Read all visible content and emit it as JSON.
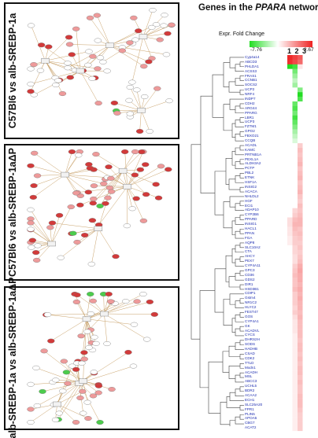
{
  "panels": [
    {
      "label": "C57Bl6 vs alb-SREBP-1a"
    },
    {
      "label": "C57Bl6 vs alb-SREBP-1aΔP"
    },
    {
      "label": "alb-SREBP-1a vs alb-SREBP-1aΔP"
    }
  ],
  "heatmap": {
    "title_prefix": "Genes in the ",
    "title_gene": "PPARA",
    "title_suffix": " network",
    "legend_label": "Expr. Fold Change",
    "min_label": "-7.76",
    "max_label": "2.67",
    "column_labels": "1 2 3",
    "colors": {
      "low": "#22dd22",
      "mid": "#ffffff",
      "high": "#ee2222"
    },
    "genes": [
      "Cyp4a14",
      "ABCD3",
      "PHLDA1",
      "ACSS3",
      "FRAS1",
      "CCNB1",
      "SOCS2",
      "UCP2",
      "NRF4",
      "INDP7",
      "CDH2",
      "ARG44",
      "PPARG",
      "LBR1",
      "UCP3",
      "FZTM1",
      "GPO2",
      "FBXO21",
      "CCQB",
      "ACADL",
      "KAMC",
      "PRTNB1A",
      "PEXL1A",
      "ALDH3A2",
      "PCTP",
      "PBL2",
      "ETNK",
      "HSF1A",
      "INSIG2",
      "ACACA",
      "NHLDL2",
      "HGF",
      "ECI1",
      "ADAP10",
      "CYP2B6",
      "PPARD",
      "INSIG1",
      "HACL1",
      "PPAN",
      "FGA",
      "AQP8",
      "SLC10A2",
      "CTA",
      "AHCY",
      "PEX7",
      "CYP4A11",
      "GPC3",
      "CD36",
      "GDS2",
      "DIR1",
      "HSD3B1",
      "CDIP1",
      "Gstm4",
      "NR1C2",
      "HLYC2",
      "FEST47",
      "GOS",
      "CYP4A1",
      "GK",
      "ACADVL",
      "CYCS",
      "DHRS2H",
      "SODS",
      "HADHB",
      "CSAD",
      "CDK2",
      "TTLD",
      "Mxdn1",
      "ACADH",
      "MSL",
      "ABCC3",
      "UCHL5",
      "BDR2",
      "ACAA2",
      "ECH1",
      "SLC25A20",
      "FPR1",
      "PLIN5",
      "APOA5",
      "CBG7",
      "ACAT2"
    ],
    "values": [
      [
        2.6,
        2.3,
        2.0
      ],
      [
        2.5,
        2.2,
        1.8
      ],
      [
        -6.5,
        -3.0,
        0.3
      ],
      [
        0.0,
        -2.2,
        0.0
      ],
      [
        0.0,
        -1.6,
        0.0
      ],
      [
        0.0,
        -1.0,
        0.0
      ],
      [
        0.0,
        -1.5,
        0.0
      ],
      [
        0.0,
        0.0,
        -2.0
      ],
      [
        0.0,
        0.0,
        -3.5
      ],
      [
        0.0,
        0.0,
        -2.8
      ],
      [
        0.0,
        -2.4,
        0.0
      ],
      [
        0.0,
        -2.8,
        0.0
      ],
      [
        0.0,
        -2.2,
        0.0
      ],
      [
        0.0,
        -3.0,
        0.0
      ],
      [
        0.0,
        -2.5,
        0.0
      ],
      [
        0.0,
        -2.0,
        0.0
      ],
      [
        0.0,
        -1.4,
        0.0
      ],
      [
        0.0,
        -1.0,
        0.0
      ],
      [
        0.0,
        -0.6,
        0.0
      ],
      [
        0.0,
        0.0,
        0.6
      ],
      [
        0.0,
        0.0,
        0.8
      ],
      [
        0.0,
        0.0,
        0.7
      ],
      [
        0.0,
        0.0,
        0.8
      ],
      [
        0.0,
        0.0,
        0.9
      ],
      [
        0.0,
        0.0,
        0.7
      ],
      [
        0.0,
        0.0,
        0.8
      ],
      [
        0.0,
        0.0,
        0.9
      ],
      [
        0.0,
        0.0,
        0.7
      ],
      [
        0.0,
        0.0,
        0.8
      ],
      [
        0.0,
        0.0,
        0.9
      ],
      [
        0.0,
        0.0,
        0.7
      ],
      [
        0.0,
        0.0,
        0.6
      ],
      [
        0.0,
        0.0,
        0.8
      ],
      [
        0.0,
        0.5,
        0.7
      ],
      [
        0.0,
        0.6,
        0.8
      ],
      [
        0.4,
        0.8,
        0.9
      ],
      [
        0.4,
        0.9,
        0.9
      ],
      [
        0.3,
        0.8,
        0.7
      ],
      [
        0.3,
        0.7,
        0.8
      ],
      [
        0.2,
        0.6,
        0.7
      ],
      [
        0.2,
        0.6,
        0.6
      ],
      [
        0.0,
        0.5,
        0.7
      ],
      [
        0.0,
        0.5,
        0.6
      ],
      [
        0.0,
        0.4,
        0.7
      ],
      [
        0.0,
        0.4,
        0.8
      ],
      [
        0.0,
        0.6,
        1.0
      ],
      [
        0.0,
        0.7,
        1.1
      ],
      [
        0.0,
        0.8,
        1.0
      ],
      [
        0.0,
        0.7,
        1.0
      ],
      [
        0.0,
        0.7,
        0.9
      ],
      [
        0.0,
        0.8,
        1.0
      ],
      [
        0.0,
        0.6,
        0.9
      ],
      [
        0.0,
        0.6,
        1.0
      ],
      [
        0.0,
        0.6,
        0.9
      ],
      [
        0.0,
        0.5,
        0.9
      ],
      [
        0.0,
        0.6,
        0.8
      ],
      [
        0.0,
        0.4,
        0.9
      ],
      [
        0.0,
        0.3,
        0.8
      ],
      [
        0.0,
        0.3,
        0.8
      ],
      [
        0.0,
        0.3,
        0.8
      ],
      [
        0.0,
        0.2,
        0.8
      ],
      [
        0.0,
        0.2,
        0.7
      ],
      [
        0.0,
        0.2,
        0.8
      ],
      [
        0.0,
        0.2,
        0.8
      ],
      [
        0.0,
        0.2,
        0.7
      ],
      [
        0.0,
        0.2,
        0.8
      ],
      [
        0.0,
        0.2,
        0.7
      ],
      [
        0.0,
        0.2,
        0.8
      ],
      [
        0.0,
        0.2,
        0.8
      ],
      [
        0.0,
        0.2,
        0.7
      ],
      [
        0.0,
        0.2,
        0.8
      ],
      [
        0.0,
        0.2,
        0.7
      ],
      [
        0.0,
        0.2,
        0.7
      ],
      [
        0.0,
        0.2,
        0.8
      ],
      [
        0.0,
        0.2,
        0.8
      ],
      [
        0.0,
        0.2,
        0.8
      ],
      [
        0.0,
        0.2,
        0.7
      ],
      [
        0.0,
        0.2,
        0.6
      ],
      [
        0.0,
        0.2,
        0.6
      ],
      [
        0.0,
        0.2,
        0.6
      ],
      [
        0.0,
        0.2,
        0.6
      ]
    ]
  }
}
